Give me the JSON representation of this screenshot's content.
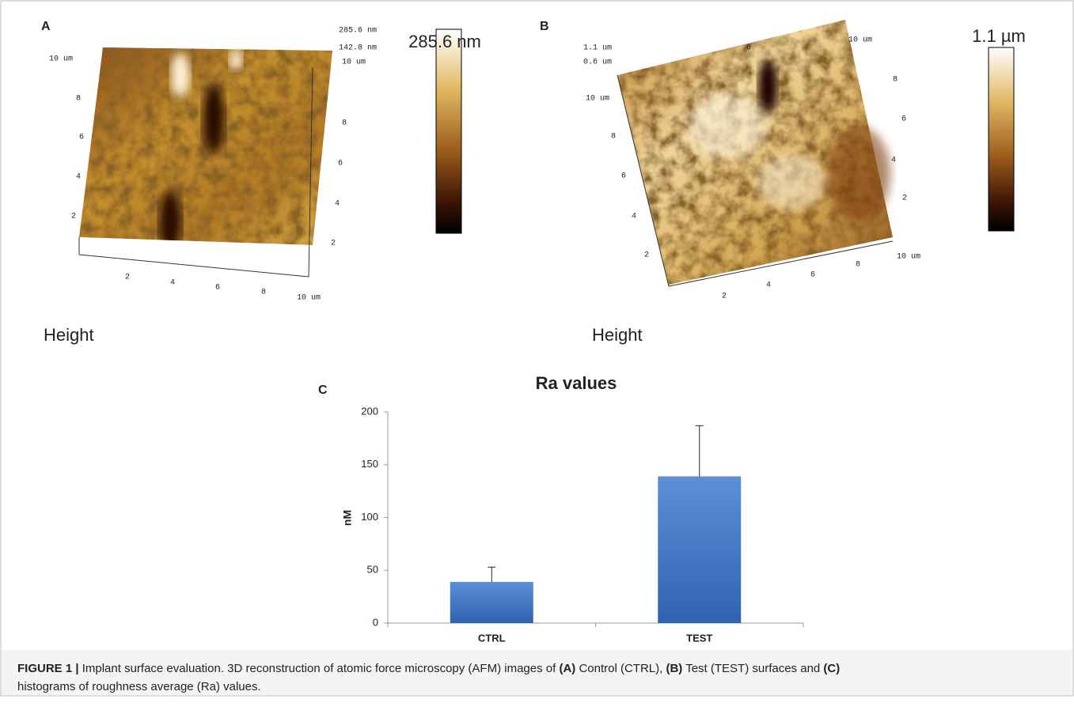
{
  "panels": [
    {
      "letter": "A",
      "scale_label": "285.6 nm",
      "channel": "Height",
      "axis_labels": [
        "285.6 nm",
        "142.8 nm",
        "10 um",
        "8",
        "6",
        "4",
        "2",
        "10 um",
        "8",
        "6",
        "4",
        "2",
        "2",
        "4",
        "6",
        "8",
        "10 um"
      ]
    },
    {
      "letter": "B",
      "scale_label": "1.1 µm",
      "channel": "Height",
      "axis_labels": [
        "1.1 um",
        "0.6 um",
        "10 um",
        "8",
        "6",
        "4",
        "2",
        "2",
        "4",
        "6",
        "8",
        "10 um",
        "10 um",
        "8",
        "6",
        "4",
        "2",
        "6"
      ]
    }
  ],
  "chart_label": "C",
  "chart_data": {
    "type": "bar",
    "title": "Ra values",
    "y_label": "nM",
    "categories": [
      "CTRL",
      "TEST"
    ],
    "values": [
      39,
      139
    ],
    "errors": [
      14,
      48
    ],
    "color": "#4a7ec8",
    "ylim": [
      0,
      200
    ],
    "yticks": [
      0,
      50,
      100,
      150,
      200
    ]
  },
  "caption": {
    "lines": [
      [
        {
          "text": "FIGURE 1 |",
          "bold": true
        },
        {
          "text": " Implant surface evaluation. 3D reconstruction of atomic force microscopy (AFM) images of ",
          "bold": false
        },
        {
          "text": "(A)",
          "bold": true
        },
        {
          "text": " Control (CTRL), ",
          "bold": false
        },
        {
          "text": "(B)",
          "bold": true
        },
        {
          "text": " Test (TEST) surfaces and ",
          "bold": false
        },
        {
          "text": "(C)",
          "bold": true
        }
      ],
      [
        {
          "text": "histograms of roughness average (Ra) values.",
          "bold": false
        }
      ]
    ]
  }
}
